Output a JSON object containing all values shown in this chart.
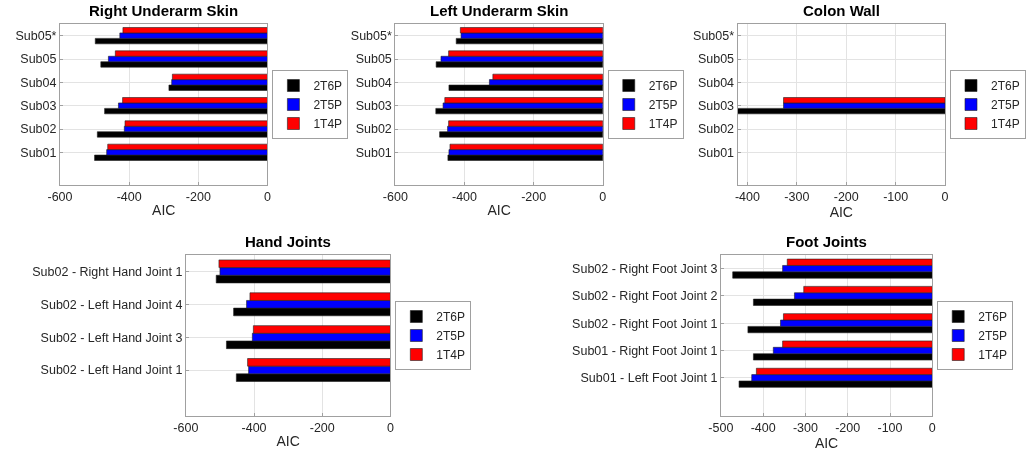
{
  "chart_data": [
    {
      "type": "bar",
      "orientation": "horizontal",
      "title": "Right Underarm Skin",
      "xlabel": "AIC",
      "categories": [
        "Sub05*",
        "Sub05",
        "Sub04",
        "Sub03",
        "Sub02",
        "Sub01"
      ],
      "xlim": [
        -600,
        0
      ],
      "xticks": [
        -600,
        -400,
        -200,
        0
      ],
      "grid": true,
      "legend": "right",
      "series": [
        {
          "name": "2T6P",
          "color": "#000000",
          "values": [
            -498,
            -482,
            -285,
            -471,
            -492,
            -500
          ]
        },
        {
          "name": "2T5P",
          "color": "#0000ff",
          "values": [
            -427,
            -460,
            -277,
            -431,
            -414,
            -465
          ]
        },
        {
          "name": "1T4P",
          "color": "#ff0000",
          "values": [
            -418,
            -440,
            -275,
            -419,
            -412,
            -462
          ]
        }
      ]
    },
    {
      "type": "bar",
      "orientation": "horizontal",
      "title": "Left Underarm Skin",
      "xlabel": "AIC",
      "categories": [
        "Sub05*",
        "Sub05",
        "Sub04",
        "Sub03",
        "Sub02",
        "Sub01"
      ],
      "xlim": [
        -600,
        0
      ],
      "xticks": [
        -600,
        -400,
        -200,
        0
      ],
      "grid": true,
      "legend": "right",
      "series": [
        {
          "name": "2T6P",
          "color": "#000000",
          "values": [
            -424,
            -482,
            -445,
            -483,
            -472,
            -448
          ]
        },
        {
          "name": "2T5P",
          "color": "#0000ff",
          "values": [
            -410,
            -468,
            -328,
            -462,
            -449,
            -445
          ]
        },
        {
          "name": "1T4P",
          "color": "#ff0000",
          "values": [
            -412,
            -446,
            -318,
            -457,
            -446,
            -442
          ]
        }
      ]
    },
    {
      "type": "bar",
      "orientation": "horizontal",
      "title": "Colon Wall",
      "xlabel": "AIC",
      "categories": [
        "Sub05*",
        "Sub05",
        "Sub04",
        "Sub03",
        "Sub02",
        "Sub01"
      ],
      "xlim": [
        -420,
        0
      ],
      "xticks": [
        -400,
        -300,
        -200,
        -100,
        0
      ],
      "grid": true,
      "legend": "right",
      "series": [
        {
          "name": "2T6P",
          "color": "#000000",
          "values": [
            null,
            null,
            null,
            -420,
            null,
            null
          ]
        },
        {
          "name": "2T5P",
          "color": "#0000ff",
          "values": [
            null,
            null,
            null,
            -327,
            null,
            null
          ]
        },
        {
          "name": "1T4P",
          "color": "#ff0000",
          "values": [
            null,
            null,
            null,
            -327,
            null,
            null
          ]
        }
      ]
    },
    {
      "type": "bar",
      "orientation": "horizontal",
      "title": "Hand Joints",
      "xlabel": "AIC",
      "categories": [
        "Sub02 - Right Hand Joint 1",
        "Sub02 - Left Hand Joint 4",
        "Sub02 - Left Hand Joint 3",
        "Sub02 - Left Hand Joint 1"
      ],
      "xlim": [
        -600,
        0
      ],
      "xticks": [
        -600,
        -400,
        -200,
        0
      ],
      "grid": true,
      "legend": "right",
      "series": [
        {
          "name": "2T6P",
          "color": "#000000",
          "values": [
            -511,
            -460,
            -481,
            -452
          ]
        },
        {
          "name": "2T5P",
          "color": "#0000ff",
          "values": [
            -500,
            -422,
            -405,
            -416
          ]
        },
        {
          "name": "1T4P",
          "color": "#ff0000",
          "values": [
            -503,
            -412,
            -402,
            -419
          ]
        }
      ]
    },
    {
      "type": "bar",
      "orientation": "horizontal",
      "title": "Foot Joints",
      "xlabel": "AIC",
      "categories": [
        "Sub02 - Right Foot Joint 3",
        "Sub02 - Right Foot Joint 2",
        "Sub02 - Right Foot Joint 1",
        "Sub01 - Right Foot Joint 1",
        "Sub01 - Left Foot Joint 1"
      ],
      "xlim": [
        -500,
        0
      ],
      "xticks": [
        -500,
        -400,
        -300,
        -200,
        -100,
        0
      ],
      "grid": true,
      "legend": "right",
      "series": [
        {
          "name": "2T6P",
          "color": "#000000",
          "values": [
            -472,
            -423,
            -436,
            -423,
            -457
          ]
        },
        {
          "name": "2T5P",
          "color": "#0000ff",
          "values": [
            -354,
            -326,
            -359,
            -376,
            -427
          ]
        },
        {
          "name": "1T4P",
          "color": "#ff0000",
          "values": [
            -343,
            -304,
            -352,
            -354,
            -416
          ]
        }
      ]
    }
  ]
}
